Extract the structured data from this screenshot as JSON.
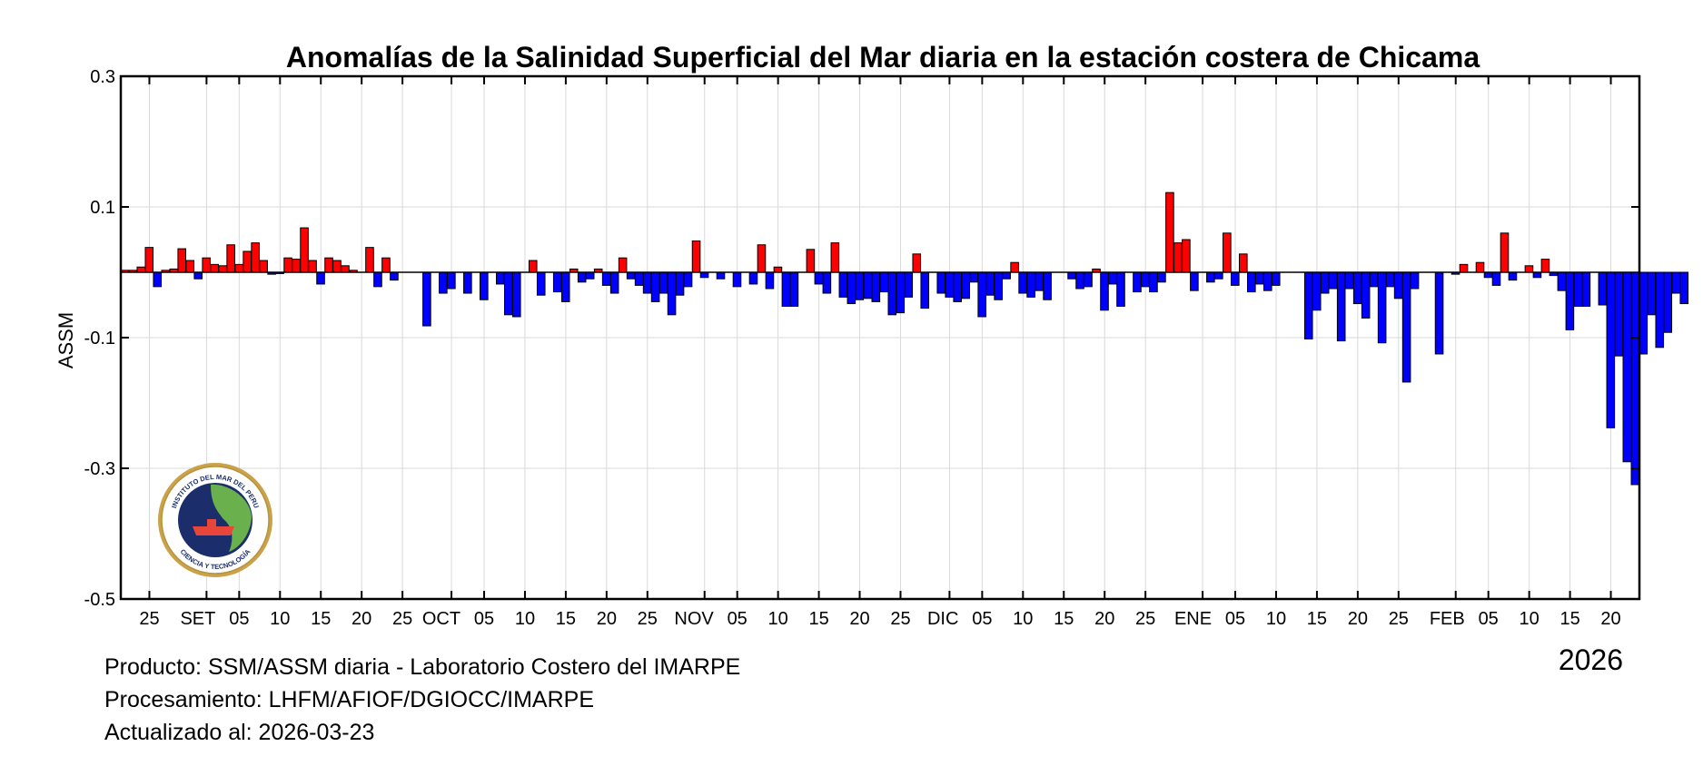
{
  "chart_data": {
    "type": "bar",
    "title": "Anomalías de la Salinidad Superficial del Mar diaria en la estación costera de Chicama",
    "ylabel": "ASSM",
    "xlabel": "",
    "ylim": [
      -0.5,
      0.3
    ],
    "y_ticks": [
      "0.3",
      "0.1",
      "-0.1",
      "-0.3",
      "-0.5"
    ],
    "grid": true,
    "start_date": "2025-08-22",
    "end_date": "2026-02-23",
    "x_tick_labels": [
      "25",
      "SET",
      "05",
      "10",
      "15",
      "20",
      "25",
      "OCT",
      "05",
      "10",
      "15",
      "20",
      "25",
      "NOV",
      "05",
      "10",
      "15",
      "20",
      "25",
      "DIC",
      "05",
      "10",
      "15",
      "20",
      "25",
      "ENE",
      "05",
      "10",
      "15",
      "20",
      "25",
      "FEB",
      "05",
      "10",
      "15",
      "20"
    ],
    "positive_color": "#ff0000",
    "negative_color": "#0000ff",
    "values": [
      0.003,
      0.003,
      0.008,
      0.038,
      -0.022,
      0.003,
      0.005,
      0.036,
      0.018,
      -0.01,
      0.022,
      0.012,
      0.01,
      0.042,
      0.012,
      0.032,
      0.045,
      0.018,
      -0.003,
      -0.002,
      0.022,
      0.02,
      0.068,
      0.018,
      -0.018,
      0.022,
      0.018,
      0.01,
      0.003,
      0.0,
      0.038,
      -0.022,
      0.022,
      -0.012,
      0.0,
      0.0,
      0.0,
      -0.082,
      0.0,
      -0.032,
      -0.025,
      0.0,
      -0.032,
      0.0,
      -0.042,
      0.0,
      -0.018,
      -0.065,
      -0.068,
      0.0,
      0.018,
      -0.035,
      0.0,
      -0.03,
      -0.045,
      0.005,
      -0.015,
      -0.01,
      0.005,
      -0.02,
      -0.032,
      0.022,
      -0.01,
      -0.02,
      -0.032,
      -0.045,
      -0.032,
      -0.065,
      -0.035,
      -0.022,
      0.048,
      -0.008,
      0.0,
      -0.01,
      0.0,
      -0.022,
      0.0,
      -0.018,
      0.042,
      -0.025,
      0.008,
      -0.052,
      -0.052,
      0.0,
      0.035,
      -0.018,
      -0.032,
      0.045,
      -0.038,
      -0.048,
      -0.042,
      -0.04,
      -0.045,
      -0.03,
      -0.065,
      -0.062,
      -0.038,
      0.028,
      -0.055,
      0.0,
      -0.032,
      -0.038,
      -0.045,
      -0.04,
      -0.015,
      -0.068,
      -0.035,
      -0.042,
      -0.01,
      0.015,
      -0.032,
      -0.038,
      -0.028,
      -0.042,
      0.0,
      0.0,
      -0.01,
      -0.025,
      -0.022,
      0.005,
      -0.058,
      -0.018,
      -0.052,
      0.0,
      -0.03,
      -0.022,
      -0.03,
      -0.015,
      0.122,
      0.045,
      0.05,
      -0.028,
      0.0,
      -0.015,
      -0.01,
      0.06,
      -0.02,
      0.028,
      -0.03,
      -0.018,
      -0.028,
      -0.02,
      0.0,
      0.0,
      0.0,
      -0.102,
      -0.058,
      -0.032,
      -0.025,
      -0.105,
      -0.025,
      -0.048,
      -0.07,
      -0.022,
      -0.108,
      -0.022,
      -0.04,
      -0.168,
      -0.025,
      0.0,
      0.0,
      -0.125,
      0.0,
      -0.003,
      0.012,
      0.0,
      0.015,
      -0.008,
      -0.02,
      0.06,
      -0.012,
      0.0,
      0.01,
      -0.008,
      0.02,
      -0.005,
      -0.028,
      -0.088,
      -0.052,
      -0.052,
      0.0,
      -0.05,
      -0.238,
      -0.128,
      -0.29,
      -0.325,
      -0.125,
      -0.065,
      -0.115,
      -0.092,
      -0.032,
      -0.048
    ]
  },
  "footer": {
    "line1": "Producto: SSM/ASSM diaria - Laboratorio Costero del IMARPE",
    "line2": "Procesamiento: LHFM/AFIOF/DGIOCC/IMARPE",
    "line3": "Actualizado al: 2026-03-23"
  },
  "year_label": "2026",
  "logo": {
    "text_top": "INSTITUTO DEL MAR DEL PERU",
    "text_bottom": "CIENCIA Y TECNOLOGÍA"
  }
}
